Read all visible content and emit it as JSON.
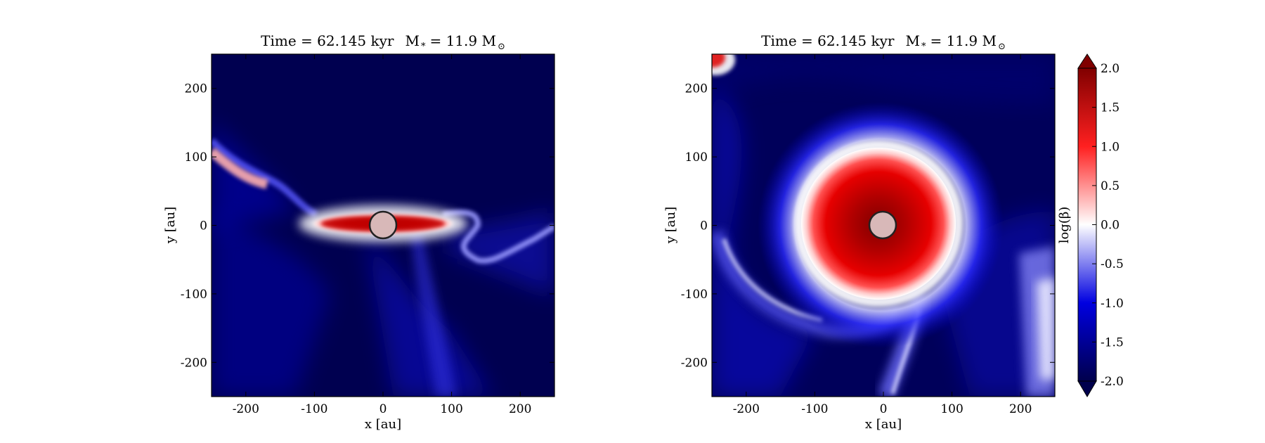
{
  "chart_data": {
    "type": "heatmap",
    "panels": [
      {
        "title_prefix": "Time = 62.145 kyr",
        "mass_label": "M",
        "mass_sub": "*",
        "mass_value": "= 11.9 M",
        "mass_unit_sub": "⊙",
        "xlabel": "x [au]",
        "ylabel": "y [au]",
        "xlim": [
          -250,
          250
        ],
        "ylim": [
          -250,
          250
        ],
        "xticks": [
          -200,
          -100,
          0,
          100,
          200
        ],
        "yticks": [
          -200,
          -100,
          0,
          100,
          200
        ],
        "xtick_labels": [
          "-200",
          "-100",
          "0",
          "100",
          "200"
        ],
        "ytick_labels": [
          "200",
          "100",
          "0",
          "-100",
          "-200"
        ],
        "sink_radius_au": 20,
        "description": "plasma beta map; dense red edge-on disk along y≈0, blue outflow cavities"
      },
      {
        "title_prefix": "Time = 62.145 kyr",
        "mass_label": "M",
        "mass_sub": "*",
        "mass_value": "= 11.9 M",
        "mass_unit_sub": "⊙",
        "xlabel": "x [au]",
        "ylabel": "y [au]",
        "xlim": [
          -250,
          250
        ],
        "ylim": [
          -250,
          250
        ],
        "xticks": [
          -200,
          -100,
          0,
          100,
          200
        ],
        "yticks": [
          -200,
          -100,
          0,
          100,
          200
        ],
        "xtick_labels": [
          "-200",
          "-100",
          "0",
          "100",
          "200"
        ],
        "ytick_labels": [
          "200",
          "100",
          "0",
          "-100",
          "-200"
        ],
        "sink_radius_au": 20,
        "description": "plasma beta map; face-on disk of radius ~90 au, red interior with spiral arms"
      }
    ],
    "colorbar": {
      "label": "log(β)",
      "range": [
        -2.0,
        2.0
      ],
      "ticks": [
        2.0,
        1.5,
        1.0,
        0.5,
        0.0,
        -0.5,
        -1.0,
        -1.5,
        -2.0
      ],
      "tick_labels": [
        "2.0",
        "1.5",
        "1.0",
        "0.5",
        "0.0",
        "-0.5",
        "-1.0",
        "-1.5",
        "-2.0"
      ],
      "extend": "both",
      "colormap": "seismic",
      "colors": {
        "low": "#00004c",
        "mid": "#ffffff",
        "high": "#800000"
      }
    }
  }
}
